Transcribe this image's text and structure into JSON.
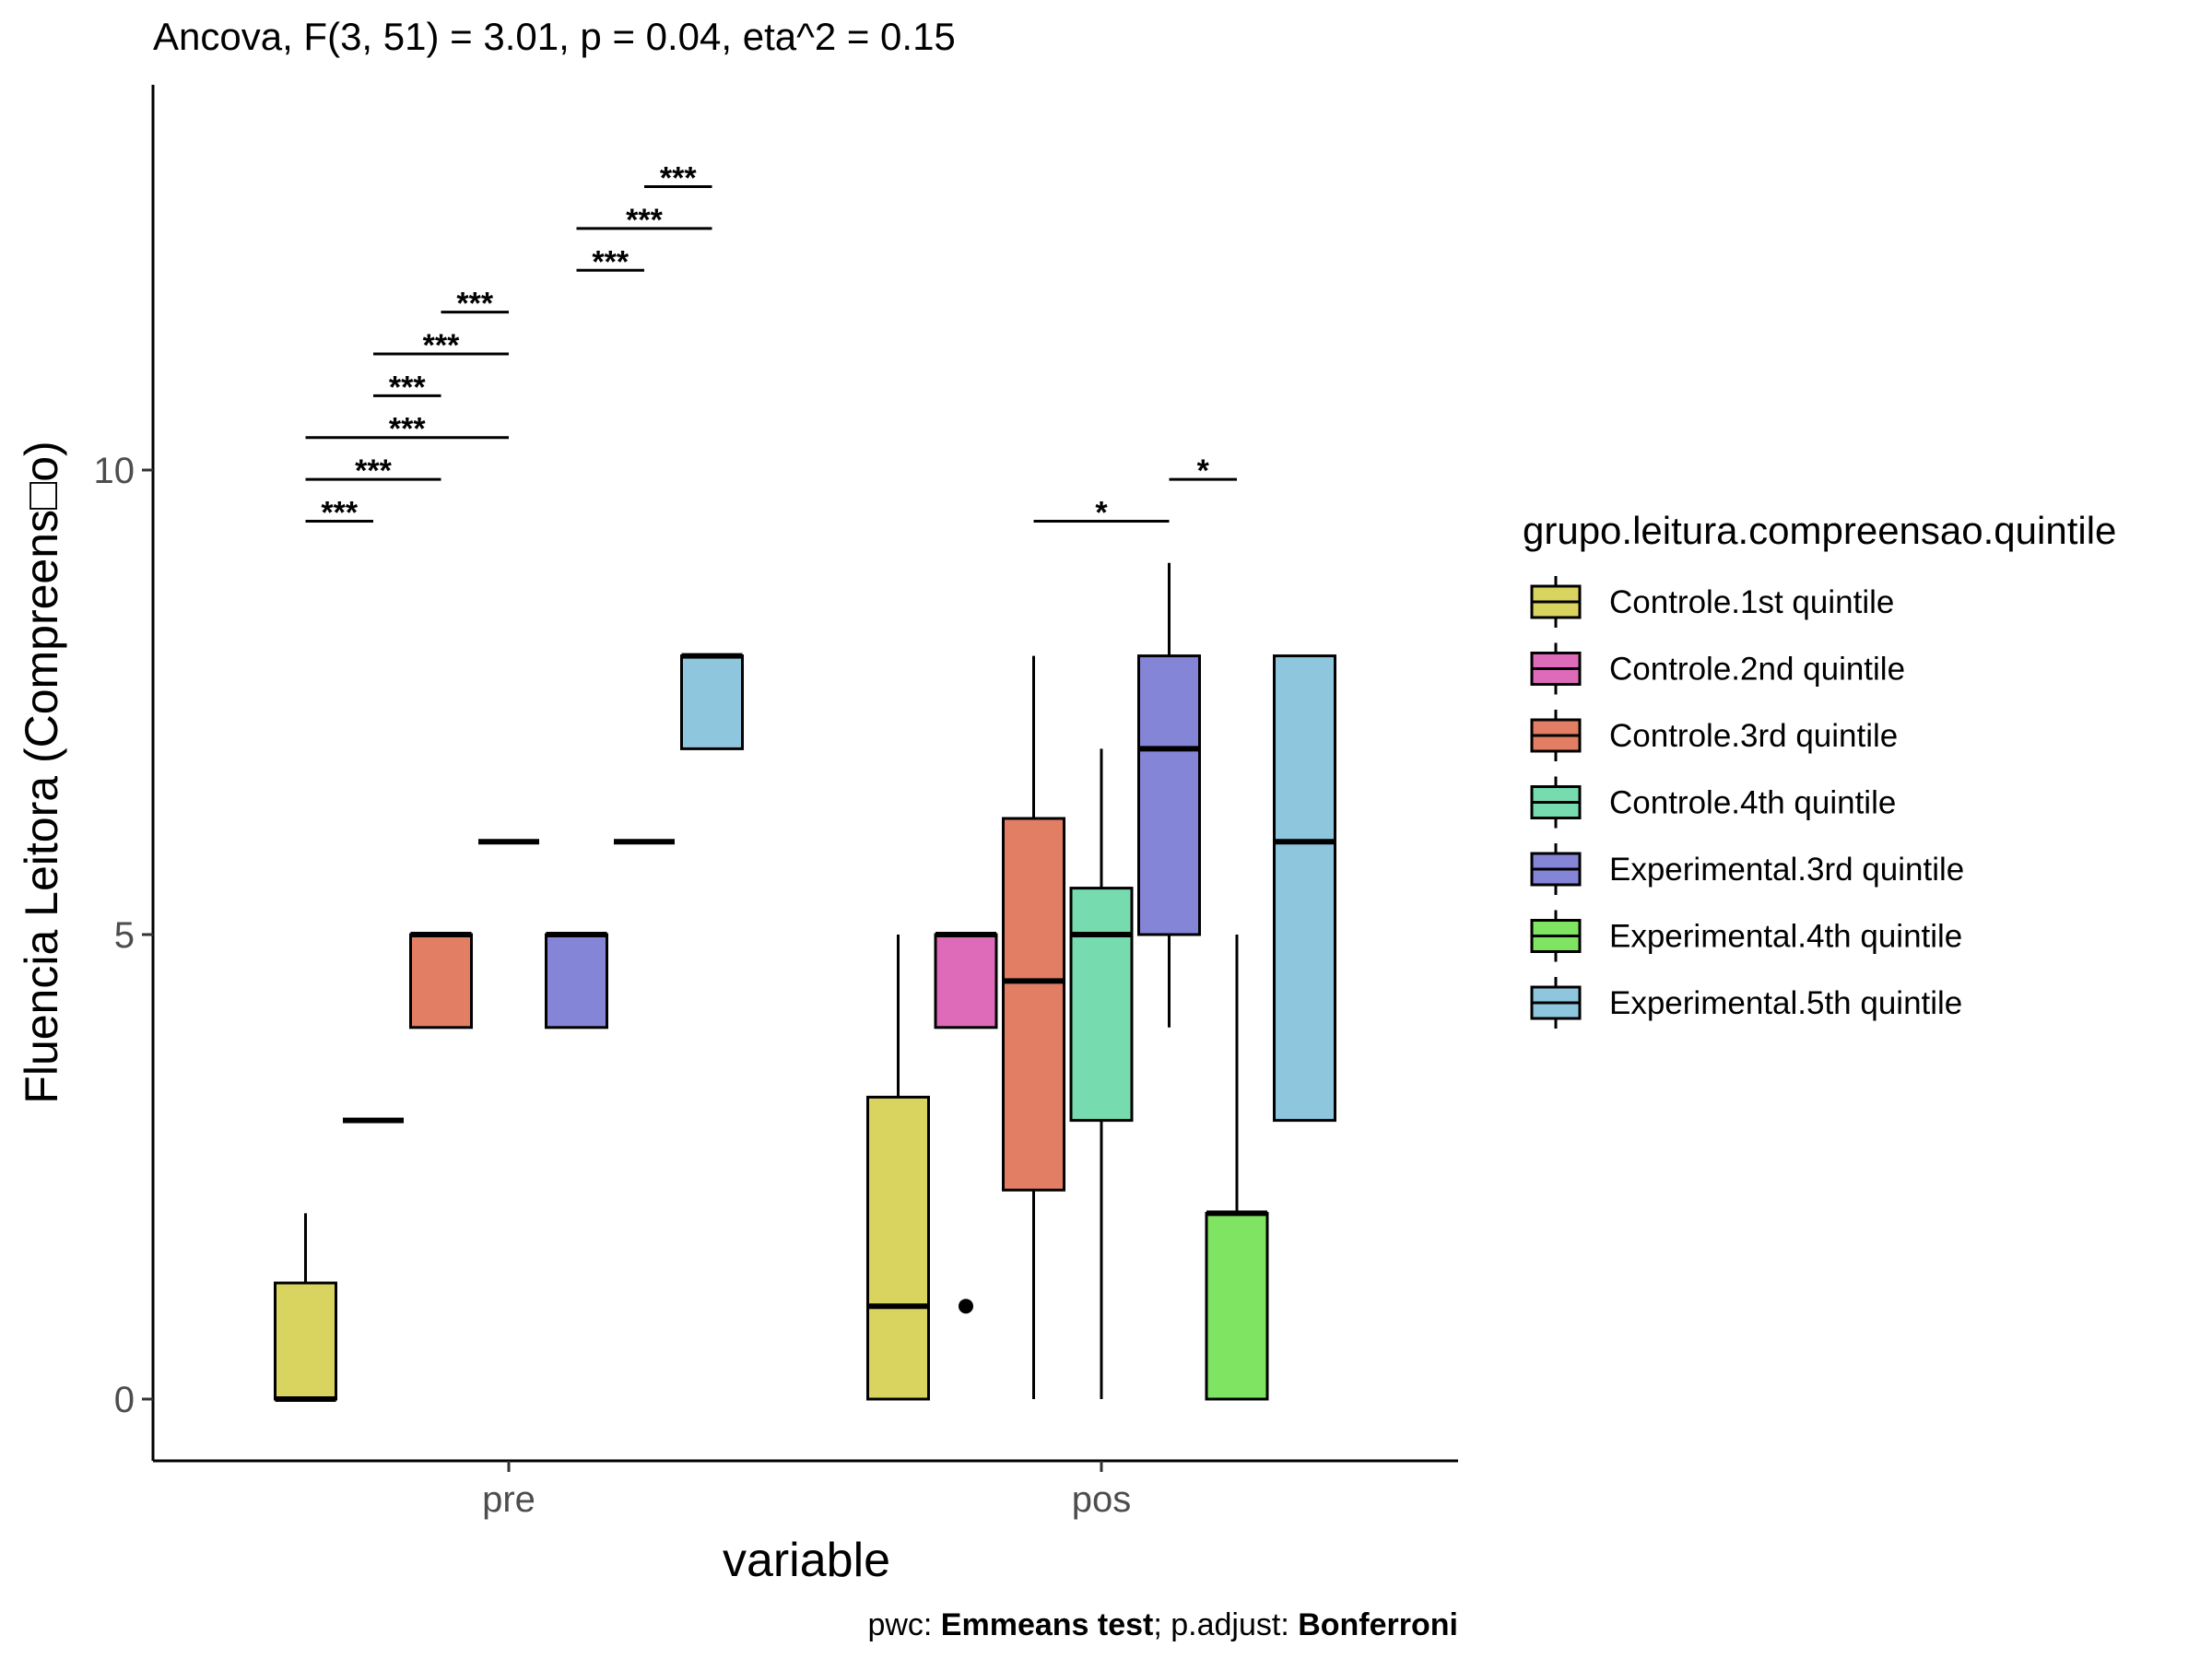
{
  "chart_data": {
    "type": "boxplot",
    "title": "Ancova, F(3, 51) = 3.01, p = 0.04, eta^2 = 0.15",
    "xlabel": "variable",
    "ylabel": "Fluencia Leitora (Compreens□o)",
    "categories": [
      "pre",
      "pos"
    ],
    "y_ticks": [
      0,
      5,
      10
    ],
    "ylim": [
      -0.65,
      14.2
    ],
    "legend_title": "grupo.leitura.compreensao.quintile",
    "legend_position": "right",
    "grid": false,
    "caption": {
      "pwc_label": "pwc: ",
      "pwc_value": "Emmeans test",
      "sep": "; p.adjust: ",
      "adjust_value": "Bonferroni"
    },
    "series": [
      {
        "name": "Controle.1st quintile",
        "color": "#D9D45F",
        "boxes": [
          {
            "x": "pre",
            "min": 0,
            "q1": 0,
            "median": 0,
            "q3": 1.25,
            "max": 2,
            "outliers": []
          },
          {
            "x": "pos",
            "min": 0,
            "q1": 0,
            "median": 1,
            "q3": 3.25,
            "max": 5,
            "outliers": []
          }
        ]
      },
      {
        "name": "Controle.2nd quintile",
        "color": "#DD6BB9",
        "boxes": [
          {
            "x": "pre",
            "min": 3,
            "q1": 3,
            "median": 3,
            "q3": 3,
            "max": 3,
            "outliers": []
          },
          {
            "x": "pos",
            "min": 4,
            "q1": 4,
            "median": 5,
            "q3": 5,
            "max": 5,
            "outliers": [
              1
            ]
          }
        ]
      },
      {
        "name": "Controle.3rd quintile",
        "color": "#E27E63",
        "boxes": [
          {
            "x": "pre",
            "min": 4,
            "q1": 4,
            "median": 5,
            "q3": 5,
            "max": 5,
            "outliers": []
          },
          {
            "x": "pos",
            "min": 0,
            "q1": 2.25,
            "median": 4.5,
            "q3": 6.25,
            "max": 8,
            "outliers": []
          }
        ]
      },
      {
        "name": "Controle.4th quintile",
        "color": "#76DBAE",
        "boxes": [
          {
            "x": "pre",
            "min": 6,
            "q1": 6,
            "median": 6,
            "q3": 6,
            "max": 6,
            "outliers": []
          },
          {
            "x": "pos",
            "min": 0,
            "q1": 3,
            "median": 5,
            "q3": 5.5,
            "max": 7,
            "outliers": []
          }
        ]
      },
      {
        "name": "Experimental.3rd quintile",
        "color": "#8585D8",
        "boxes": [
          {
            "x": "pre",
            "min": 4,
            "q1": 4,
            "median": 5,
            "q3": 5,
            "max": 5,
            "outliers": []
          },
          {
            "x": "pos",
            "min": 4,
            "q1": 5,
            "median": 7,
            "q3": 8,
            "max": 9,
            "outliers": []
          }
        ]
      },
      {
        "name": "Experimental.4th quintile",
        "color": "#7EE462",
        "boxes": [
          {
            "x": "pre",
            "min": 6,
            "q1": 6,
            "median": 6,
            "q3": 6,
            "max": 6,
            "outliers": []
          },
          {
            "x": "pos",
            "min": 0,
            "q1": 0,
            "median": 2,
            "q3": 2,
            "max": 5,
            "outliers": []
          }
        ]
      },
      {
        "name": "Experimental.5th quintile",
        "color": "#8EC6DE",
        "boxes": [
          {
            "x": "pre",
            "min": 7,
            "q1": 7,
            "median": 8,
            "q3": 8,
            "max": 8,
            "outliers": []
          },
          {
            "x": "pos",
            "min": 3,
            "q1": 3,
            "median": 6,
            "q3": 8,
            "max": 8,
            "outliers": []
          }
        ]
      }
    ],
    "comparisons": [
      {
        "x": "pre",
        "from": 0,
        "to": 1,
        "y": 9.45,
        "label": "***"
      },
      {
        "x": "pre",
        "from": 0,
        "to": 2,
        "y": 9.9,
        "label": "***"
      },
      {
        "x": "pre",
        "from": 0,
        "to": 3,
        "y": 10.35,
        "label": "***"
      },
      {
        "x": "pre",
        "from": 1,
        "to": 2,
        "y": 10.8,
        "label": "***"
      },
      {
        "x": "pre",
        "from": 1,
        "to": 3,
        "y": 11.25,
        "label": "***"
      },
      {
        "x": "pre",
        "from": 2,
        "to": 3,
        "y": 11.7,
        "label": "***"
      },
      {
        "x": "pre",
        "from": 4,
        "to": 5,
        "y": 12.15,
        "label": "***"
      },
      {
        "x": "pre",
        "from": 4,
        "to": 6,
        "y": 12.6,
        "label": "***"
      },
      {
        "x": "pre",
        "from": 5,
        "to": 6,
        "y": 13.05,
        "label": "***"
      },
      {
        "x": "pos",
        "from": 2,
        "to": 4,
        "y": 9.45,
        "label": "*"
      },
      {
        "x": "pos",
        "from": 4,
        "to": 5,
        "y": 9.9,
        "label": "*"
      }
    ]
  }
}
